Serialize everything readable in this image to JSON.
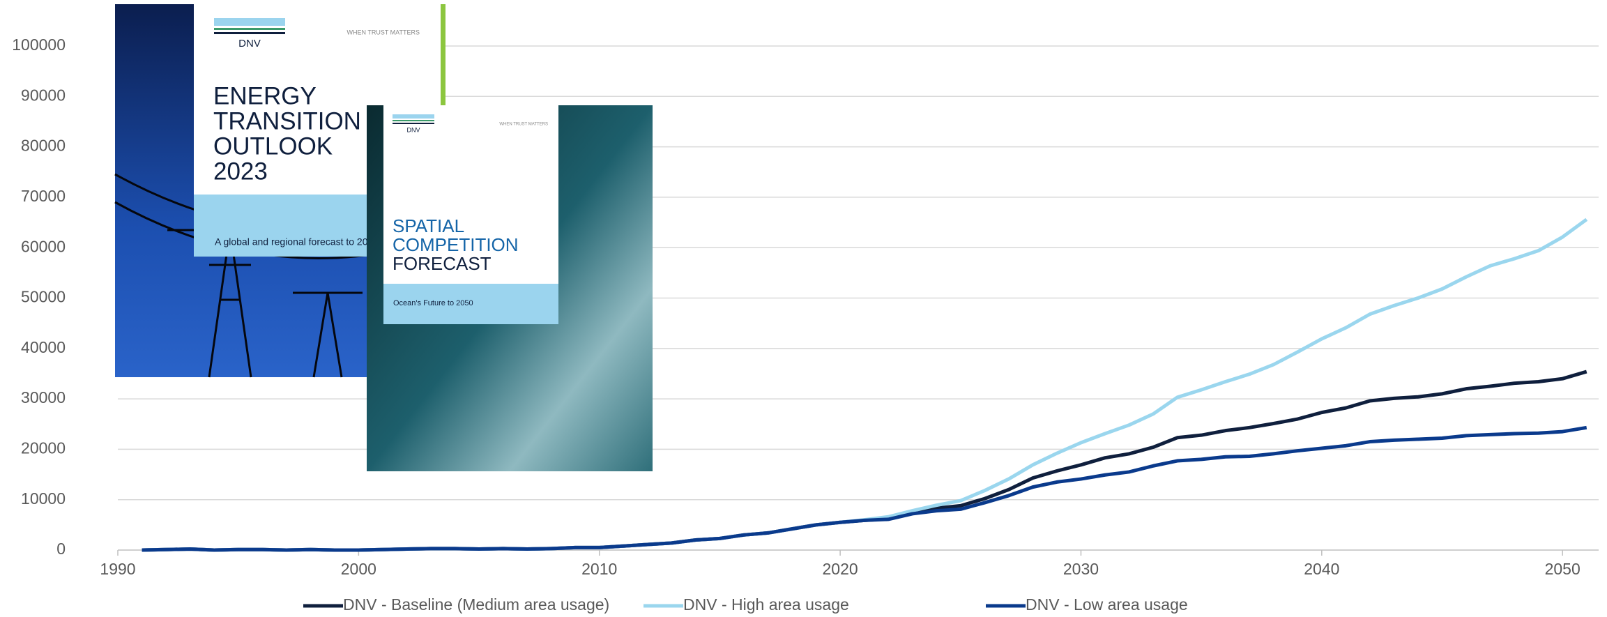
{
  "chart_data": {
    "type": "line",
    "x": [
      1991,
      1992,
      1993,
      1994,
      1995,
      1996,
      1997,
      1998,
      1999,
      2000,
      2001,
      2002,
      2003,
      2004,
      2005,
      2006,
      2007,
      2008,
      2009,
      2010,
      2011,
      2012,
      2013,
      2014,
      2015,
      2016,
      2017,
      2018,
      2019,
      2020,
      2021,
      2022,
      2023,
      2024,
      2025,
      2026,
      2027,
      2028,
      2029,
      2030,
      2031,
      2032,
      2033,
      2034,
      2035,
      2036,
      2037,
      2038,
      2039,
      2040,
      2041,
      2042,
      2043,
      2044,
      2045,
      2046,
      2047,
      2048,
      2049,
      2050,
      2051
    ],
    "series": [
      {
        "name": "DNV - Baseline (Medium area usage)",
        "color": "#0f1f3d",
        "values": [
          0,
          100,
          200,
          0,
          100,
          100,
          0,
          100,
          0,
          0,
          100,
          200,
          300,
          300,
          200,
          300,
          200,
          300,
          500,
          500,
          800,
          1100,
          1400,
          2000,
          2300,
          3000,
          3400,
          4200,
          5000,
          5500,
          5900,
          6200,
          7300,
          8300,
          8800,
          10200,
          12000,
          14300,
          15700,
          16900,
          18300,
          19100,
          20400,
          22300,
          22800,
          23700,
          24300,
          25100,
          26000,
          27300,
          28200,
          29600,
          30100,
          30400,
          31000,
          32000,
          32500,
          33100,
          33400,
          34000,
          35400
        ]
      },
      {
        "name": "DNV - High area usage",
        "color": "#9ad6ee",
        "values": [
          0,
          100,
          200,
          0,
          100,
          100,
          0,
          100,
          0,
          0,
          100,
          200,
          300,
          300,
          200,
          300,
          200,
          300,
          500,
          500,
          800,
          1100,
          1400,
          2000,
          2300,
          3000,
          3400,
          4200,
          5000,
          5500,
          6000,
          6600,
          7800,
          8900,
          9800,
          11800,
          14100,
          16900,
          19200,
          21300,
          23100,
          24800,
          27000,
          30300,
          31800,
          33400,
          34900,
          36800,
          39300,
          41900,
          44100,
          46800,
          48500,
          50000,
          51800,
          54200,
          56400,
          57800,
          59400,
          62100,
          65600
        ]
      },
      {
        "name": "DNV - Low area usage",
        "color": "#0a3a8c",
        "values": [
          0,
          100,
          200,
          0,
          100,
          100,
          0,
          100,
          0,
          0,
          100,
          200,
          300,
          300,
          200,
          300,
          200,
          300,
          500,
          500,
          800,
          1100,
          1400,
          2000,
          2300,
          3000,
          3400,
          4200,
          5000,
          5500,
          5900,
          6100,
          7200,
          7800,
          8100,
          9400,
          10800,
          12500,
          13500,
          14100,
          14900,
          15500,
          16700,
          17700,
          18000,
          18500,
          18600,
          19100,
          19700,
          20200,
          20700,
          21500,
          21800,
          22000,
          22200,
          22700,
          22900,
          23100,
          23200,
          23500,
          24300
        ]
      }
    ],
    "xlim": [
      1990,
      2051.5
    ],
    "xticks": [
      1990,
      2000,
      2010,
      2020,
      2030,
      2040,
      2050
    ],
    "ylim": [
      0,
      100000
    ],
    "yticks": [
      0,
      10000,
      20000,
      30000,
      40000,
      50000,
      60000,
      70000,
      80000,
      90000,
      100000
    ],
    "grid": true,
    "legend": "bottom"
  },
  "covers": [
    {
      "brand": "DNV",
      "tagline": "WHEN TRUST MATTERS",
      "title_lines": [
        "ENERGY",
        "TRANSITION",
        "OUTLOOK",
        "2023"
      ],
      "subtitle": "A global and regional forecast to 2050"
    },
    {
      "brand": "DNV",
      "tagline": "WHEN TRUST MATTERS",
      "title_lines": [
        "SPATIAL",
        "COMPETITION",
        "FORECAST"
      ],
      "subtitle": "Ocean's Future to 2050"
    }
  ]
}
